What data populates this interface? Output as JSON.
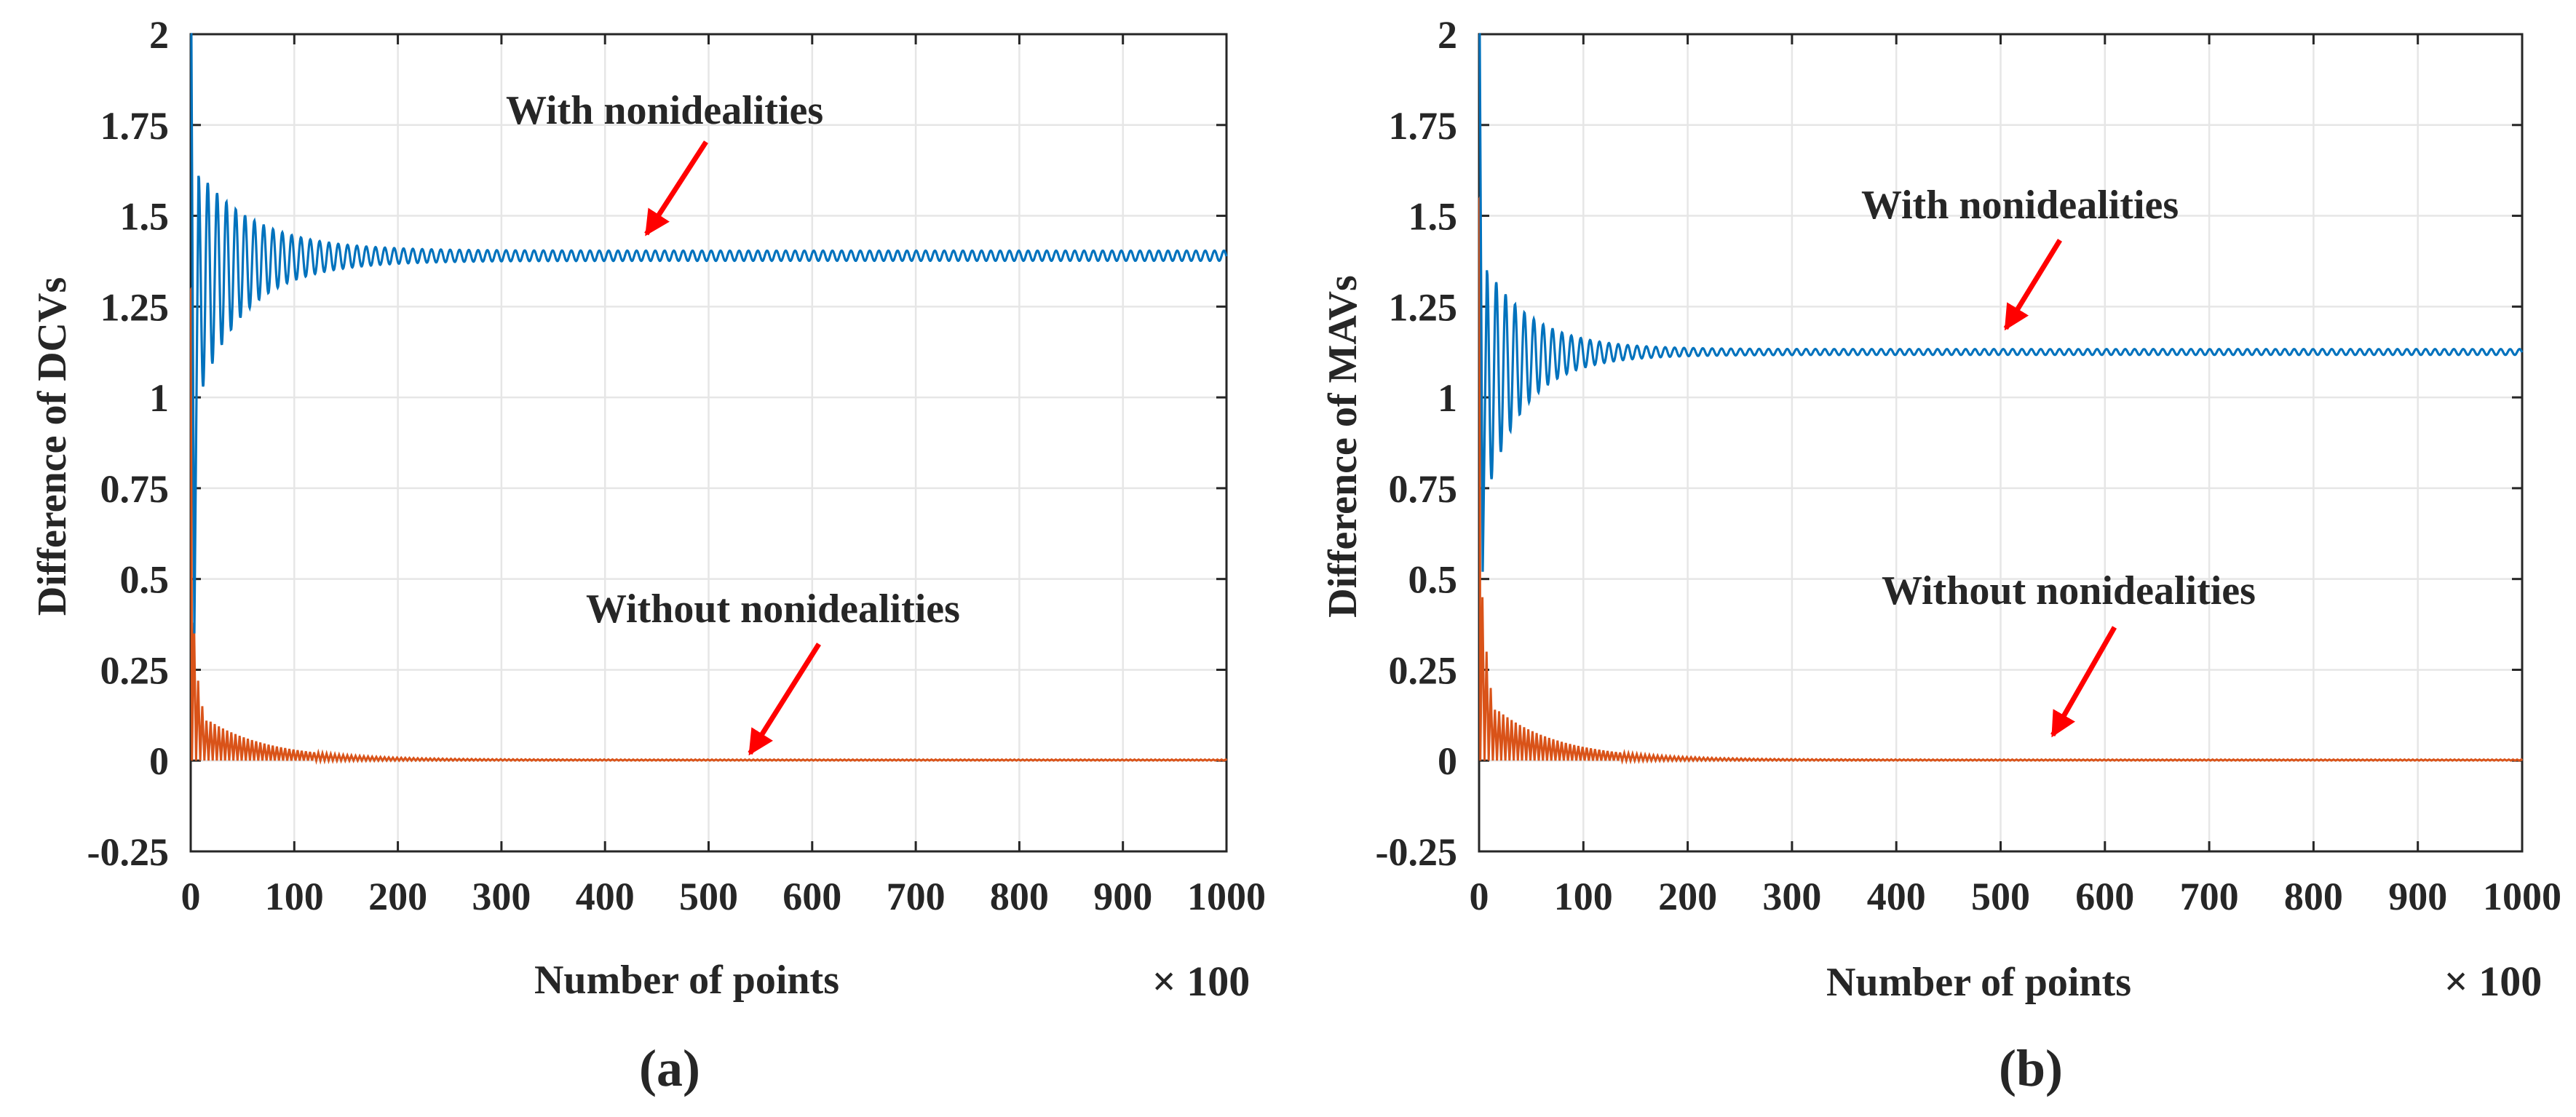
{
  "chart_data": [
    {
      "type": "line",
      "panel_label": "(a)",
      "xlabel": "Number of points",
      "ylabel": "Difference of DCVs",
      "x_multiplier": "× 100",
      "xlim": [
        0,
        1000
      ],
      "ylim": [
        -0.25,
        2
      ],
      "xticks": [
        0,
        100,
        200,
        300,
        400,
        500,
        600,
        700,
        800,
        900,
        1000
      ],
      "xtick_labels": [
        "0",
        "100",
        "200",
        "300",
        "400",
        "500",
        "600",
        "700",
        "800",
        "900",
        "1000"
      ],
      "yticks": [
        -0.25,
        0,
        0.25,
        0.5,
        0.75,
        1,
        1.25,
        1.5,
        1.75,
        2
      ],
      "ytick_labels": [
        "-0.25",
        "0",
        "0.25",
        "0.5",
        "0.75",
        "1",
        "1.25",
        "1.5",
        "1.75",
        "2"
      ],
      "grid": true,
      "series": [
        {
          "name": "With nonidealities",
          "color": "#0072BD",
          "model": "damped_oscillation",
          "start": 2.0,
          "steady_value": 1.39,
          "initial_min": 0.35,
          "first_peak": 1.61,
          "residual_amplitude": 0.014,
          "decay_constant": 55,
          "period": 9
        },
        {
          "name": "Without nonidealities",
          "color": "#D95319",
          "model": "decaying_spikes",
          "start": 1.3,
          "steady_value": 0.0,
          "spike_peaks": [
            0.38,
            0.22,
            0.15,
            0.11
          ],
          "decay_constant": 60,
          "period": 4
        }
      ],
      "annotations": [
        {
          "text": "With nonidealities",
          "arrow_to": [
            440,
            1.45
          ]
        },
        {
          "text": "Without nonidealities",
          "arrow_to": [
            540,
            0.02
          ]
        }
      ]
    },
    {
      "type": "line",
      "panel_label": "(b)",
      "xlabel": "Number of points",
      "ylabel": "Difference of MAVs",
      "x_multiplier": "× 100",
      "xlim": [
        0,
        1000
      ],
      "ylim": [
        -0.25,
        2
      ],
      "xticks": [
        0,
        100,
        200,
        300,
        400,
        500,
        600,
        700,
        800,
        900,
        1000
      ],
      "xtick_labels": [
        "0",
        "100",
        "200",
        "300",
        "400",
        "500",
        "600",
        "700",
        "800",
        "900",
        "1000"
      ],
      "yticks": [
        -0.25,
        0,
        0.25,
        0.5,
        0.75,
        1,
        1.25,
        1.5,
        1.75,
        2
      ],
      "ytick_labels": [
        "-0.25",
        "0",
        "0.25",
        "0.5",
        "0.75",
        "1",
        "1.25",
        "1.5",
        "1.75",
        "2"
      ],
      "grid": true,
      "series": [
        {
          "name": "With nonidealities",
          "color": "#0072BD",
          "model": "damped_oscillation",
          "start": 2.0,
          "steady_value": 1.125,
          "initial_min": 0.52,
          "first_peak": 1.35,
          "residual_amplitude": 0.008,
          "decay_constant": 45,
          "period": 9
        },
        {
          "name": "Without nonidealities",
          "color": "#D95319",
          "model": "decaying_spikes",
          "start": 1.55,
          "steady_value": 0.0,
          "spike_peaks": [
            0.45,
            0.3,
            0.2,
            0.14
          ],
          "decay_constant": 60,
          "period": 4
        }
      ],
      "annotations": [
        {
          "text": "With nonidealities",
          "arrow_to": [
            505,
            1.19
          ]
        },
        {
          "text": "Without nonidealities",
          "arrow_to": [
            550,
            0.07
          ]
        }
      ]
    }
  ]
}
